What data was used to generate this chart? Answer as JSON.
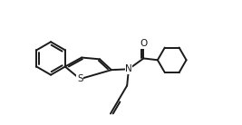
{
  "bg_color": "#ffffff",
  "line_color": "#1a1a1a",
  "line_width": 1.4,
  "figsize": [
    2.67,
    1.38
  ],
  "dpi": 100,
  "xlim": [
    -1.0,
    9.5
  ],
  "ylim": [
    -3.5,
    4.0
  ],
  "atoms": {
    "O": {
      "symbol": "O",
      "fontsize": 7.5
    },
    "N": {
      "symbol": "N",
      "fontsize": 7.5
    },
    "S": {
      "symbol": "S",
      "fontsize": 7.5
    }
  }
}
